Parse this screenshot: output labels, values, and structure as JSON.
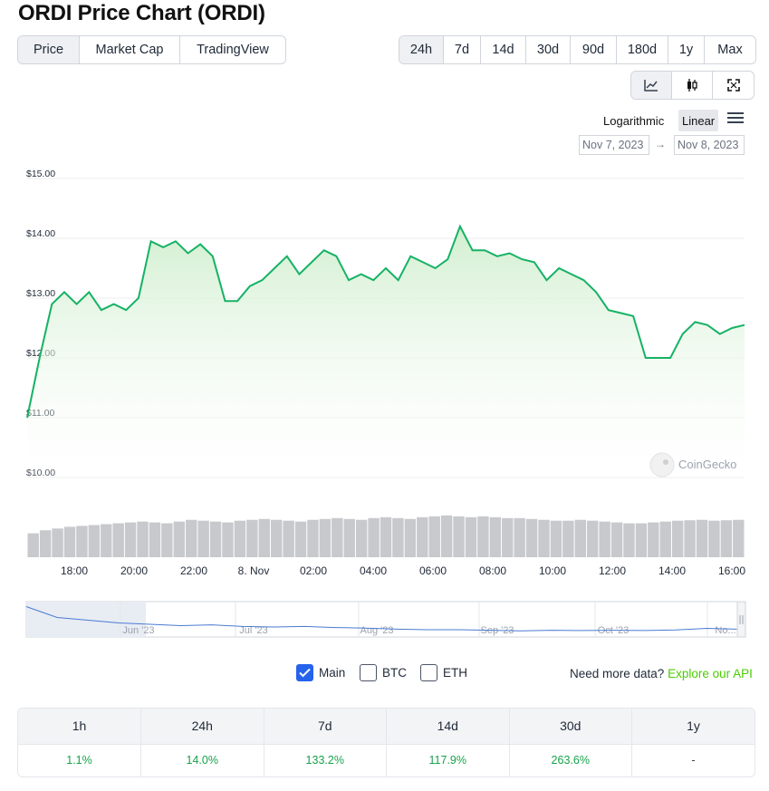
{
  "page": {
    "title": "ORDI Price Chart (ORDI)"
  },
  "tabs": [
    {
      "label": "Price",
      "active": true
    },
    {
      "label": "Market Cap",
      "active": false
    },
    {
      "label": "TradingView",
      "active": false
    }
  ],
  "ranges": [
    {
      "label": "24h",
      "active": true
    },
    {
      "label": "7d",
      "active": false
    },
    {
      "label": "14d",
      "active": false
    },
    {
      "label": "30d",
      "active": false
    },
    {
      "label": "90d",
      "active": false
    },
    {
      "label": "180d",
      "active": false
    },
    {
      "label": "1y",
      "active": false
    },
    {
      "label": "Max",
      "active": false
    }
  ],
  "views": [
    {
      "icon": "line-chart-icon",
      "active": true
    },
    {
      "icon": "candlestick-icon",
      "active": false
    },
    {
      "icon": "fullscreen-icon",
      "active": false
    }
  ],
  "scale": {
    "log_label": "Logarithmic",
    "linear_label": "Linear",
    "selected": "Linear"
  },
  "date_range": {
    "from": "Nov 7, 2023",
    "to": "Nov 8, 2023",
    "arrow": "→"
  },
  "watermark": "CoinGecko",
  "colors": {
    "line": "#16b265",
    "fill_top": "#cfeecd",
    "bar": "#c7c9cd",
    "accent_green": "#4bcc00",
    "check_blue": "#2563eb"
  },
  "chart_data": {
    "type": "area",
    "y_ticks": [
      "$15.00",
      "$14.00",
      "$13.00",
      "$12.00",
      "$11.00",
      "$10.00"
    ],
    "ylim": [
      10,
      15
    ],
    "x_ticks": [
      "18:00",
      "20:00",
      "22:00",
      "8. Nov",
      "02:00",
      "04:00",
      "06:00",
      "08:00",
      "10:00",
      "12:00",
      "14:00",
      "16:00"
    ],
    "series": [
      {
        "name": "Main",
        "values": [
          11.0,
          12.0,
          12.9,
          13.1,
          12.9,
          13.1,
          12.8,
          12.9,
          12.8,
          13.0,
          13.95,
          13.85,
          13.95,
          13.75,
          13.9,
          13.7,
          12.95,
          12.95,
          13.2,
          13.3,
          13.5,
          13.7,
          13.4,
          13.6,
          13.8,
          13.7,
          13.3,
          13.4,
          13.3,
          13.5,
          13.3,
          13.7,
          13.6,
          13.5,
          13.65,
          14.2,
          13.8,
          13.8,
          13.7,
          13.75,
          13.65,
          13.6,
          13.3,
          13.5,
          13.4,
          13.3,
          13.1,
          12.8,
          12.75,
          12.7,
          12.0,
          12.0,
          12.0,
          12.4,
          12.6,
          12.55,
          12.4,
          12.5,
          12.55
        ]
      }
    ],
    "volume": [
      0.55,
      0.62,
      0.66,
      0.7,
      0.72,
      0.74,
      0.76,
      0.78,
      0.8,
      0.82,
      0.8,
      0.78,
      0.82,
      0.86,
      0.84,
      0.82,
      0.8,
      0.84,
      0.86,
      0.88,
      0.86,
      0.84,
      0.82,
      0.86,
      0.88,
      0.9,
      0.88,
      0.86,
      0.9,
      0.92,
      0.9,
      0.88,
      0.92,
      0.94,
      0.96,
      0.94,
      0.92,
      0.94,
      0.92,
      0.9,
      0.9,
      0.88,
      0.86,
      0.84,
      0.84,
      0.86,
      0.84,
      0.82,
      0.8,
      0.78,
      0.78,
      0.8,
      0.82,
      0.84,
      0.85,
      0.86,
      0.84,
      0.85,
      0.86
    ],
    "navigator": {
      "labels": [
        "Jun '23",
        "Jul '23",
        "Aug '23",
        "Sep '23",
        "Oct '23",
        "No..."
      ],
      "values": [
        0.95,
        0.55,
        0.45,
        0.35,
        0.3,
        0.25,
        0.28,
        0.22,
        0.2,
        0.22,
        0.18,
        0.16,
        0.12,
        0.1,
        0.1,
        0.08,
        0.06,
        0.08,
        0.07,
        0.08,
        0.07,
        0.09,
        0.15,
        0.12
      ]
    }
  },
  "legend": [
    {
      "label": "Main",
      "checked": true
    },
    {
      "label": "BTC",
      "checked": false
    },
    {
      "label": "ETH",
      "checked": false
    }
  ],
  "more_data": {
    "text": "Need more data?",
    "link": "Explore our API"
  },
  "performance": {
    "headers": [
      "1h",
      "24h",
      "7d",
      "14d",
      "30d",
      "1y"
    ],
    "values": [
      "1.1%",
      "14.0%",
      "133.2%",
      "117.9%",
      "263.6%",
      "-"
    ]
  }
}
